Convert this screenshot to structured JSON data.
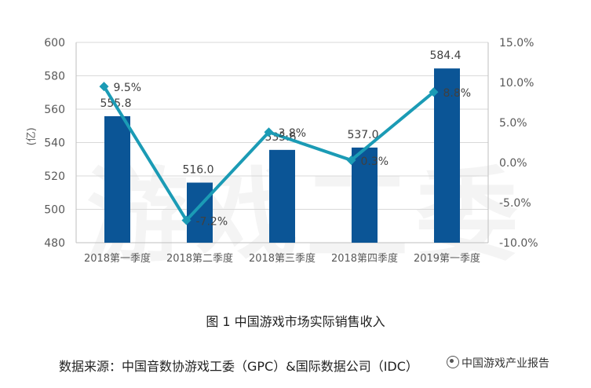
{
  "chart_data": {
    "type": "bar",
    "categories": [
      "2018第一季度",
      "2018第二季度",
      "2018第三季度",
      "2018第四季度",
      "2019第一季度"
    ],
    "series": [
      {
        "type": "bar",
        "values": [
          555.8,
          516.0,
          535.6,
          537.0,
          584.4
        ],
        "labels": [
          "555.8",
          "516.0",
          "535.6",
          "537.0",
          "584.4"
        ],
        "color": "#0b5596",
        "axis": "left"
      },
      {
        "type": "line",
        "values": [
          9.5,
          -7.2,
          3.8,
          0.3,
          8.8
        ],
        "labels": [
          "9.5%",
          "-7.2%",
          "3.8%",
          "0.3%",
          "8.8%"
        ],
        "color": "#1b9bb5",
        "axis": "right"
      }
    ],
    "ylabel": "(亿)",
    "ylim": [
      480,
      600
    ],
    "yticks": [
      "600",
      "580",
      "560",
      "540",
      "520",
      "500",
      "480"
    ],
    "y2lim": [
      -10,
      15
    ],
    "y2ticks": [
      "15.0%",
      "10.0%",
      "5.0%",
      "0.0%",
      "-5.0%",
      "-10.0%"
    ],
    "grid": true
  },
  "watermark": "游戏工委",
  "caption": "图 1  中国游戏市场实际销售收入",
  "source": "数据来源：中国音数协游戏工委（GPC）&国际数据公司（IDC）",
  "brand": "中国游戏产业报告"
}
